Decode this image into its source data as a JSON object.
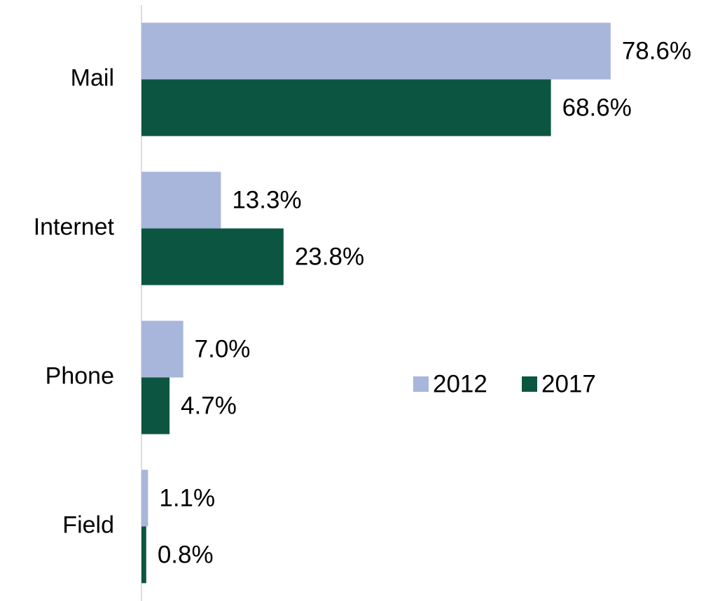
{
  "chart_data": {
    "type": "hbar",
    "categories": [
      "Mail",
      "Internet",
      "Phone",
      "Field"
    ],
    "series": [
      {
        "name": "2012",
        "color": "#a9b6db",
        "values": [
          78.6,
          13.3,
          7.0,
          1.1
        ],
        "value_labels": [
          "78.6%",
          "13.3%",
          "7.0%",
          "1.1%"
        ]
      },
      {
        "name": "2017",
        "color": "#0c5641",
        "values": [
          68.6,
          23.8,
          4.7,
          0.8
        ],
        "value_labels": [
          "68.6%",
          "23.8%",
          "4.7%",
          "0.8%"
        ]
      }
    ],
    "xlim": [
      0,
      90
    ]
  }
}
